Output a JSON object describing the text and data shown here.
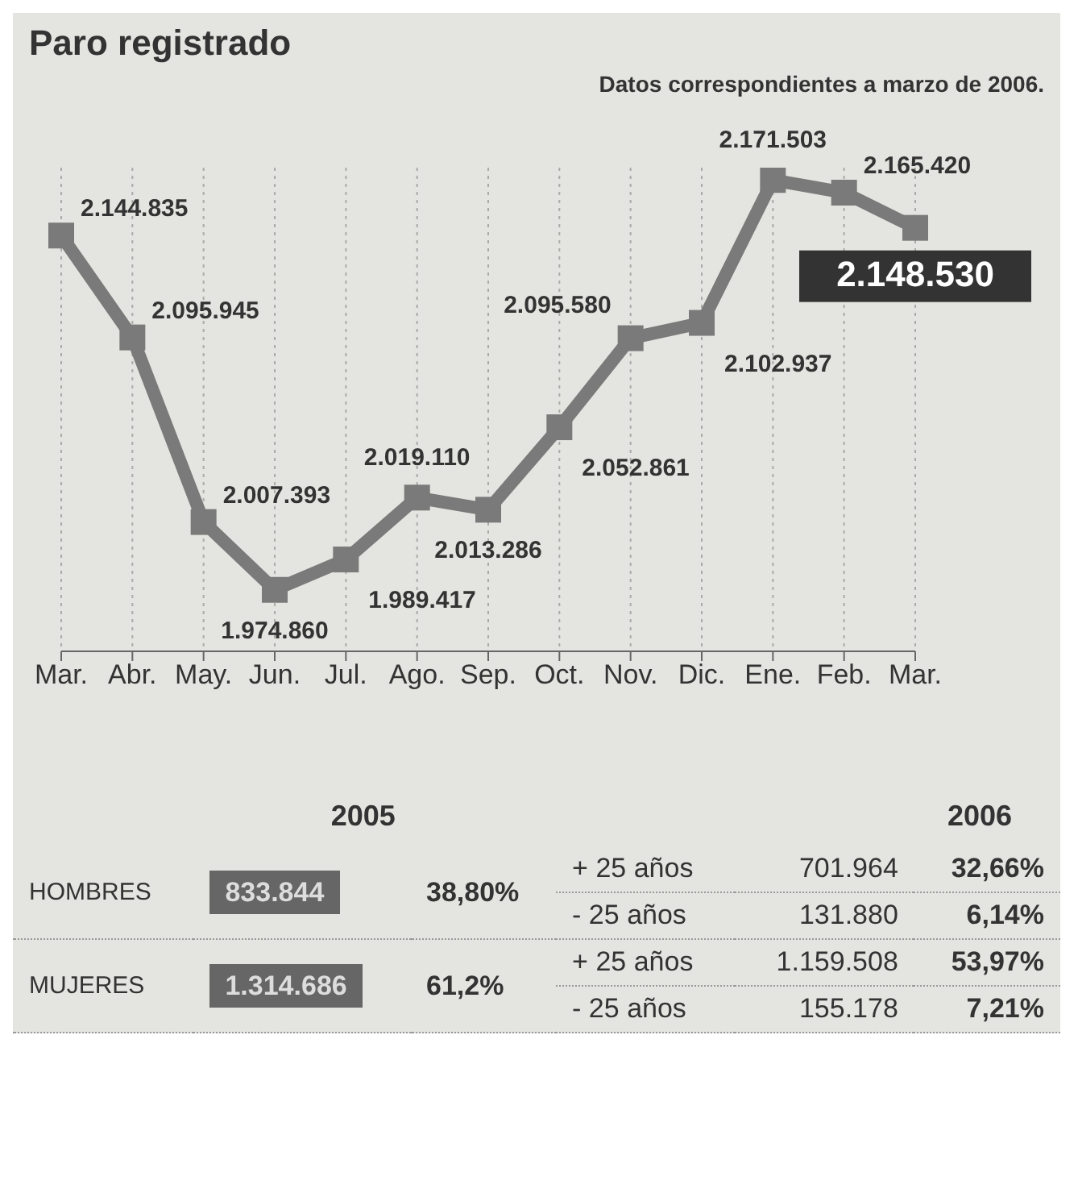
{
  "chart_data": {
    "type": "line",
    "title": "Paro registrado",
    "subtitle": "Datos correspondientes a marzo de 2006.",
    "categories": [
      "Mar.",
      "Abr.",
      "May.",
      "Jun.",
      "Jul.",
      "Ago.",
      "Sep.",
      "Oct.",
      "Nov.",
      "Dic.",
      "Ene.",
      "Feb.",
      "Mar."
    ],
    "series": [
      {
        "color": "#7a7a7a",
        "values": [
          2144835,
          2095945,
          2007393,
          1974860,
          1989417,
          2019110,
          2013286,
          2052861,
          2095580,
          2102937,
          2171503,
          2165420,
          2148530
        ],
        "value_labels": [
          "2.144.835",
          "2.095.945",
          "2.007.393",
          "1.974.860",
          "1.989.417",
          "2.019.110",
          "2.013.286",
          "2.052.861",
          "2.095.580",
          "2.102.937",
          "2.171.503",
          "2.165.420",
          "2.148.530"
        ]
      }
    ],
    "tick_labels": "x",
    "grid": "x",
    "marker": "square",
    "line_style": "solid",
    "annotations": [
      "2005",
      "2006",
      "HOMBRES",
      "833.844",
      "38,80%",
      "+ 25 años",
      "701.964",
      "32,66%",
      "- 25 años",
      "131.880",
      "6,14%",
      "MUJERES",
      "1.314.686",
      "61,2%",
      "+ 25 años",
      "1.159.508",
      "53,97%",
      "- 25 años",
      "155.178",
      "7,21%"
    ]
  }
}
